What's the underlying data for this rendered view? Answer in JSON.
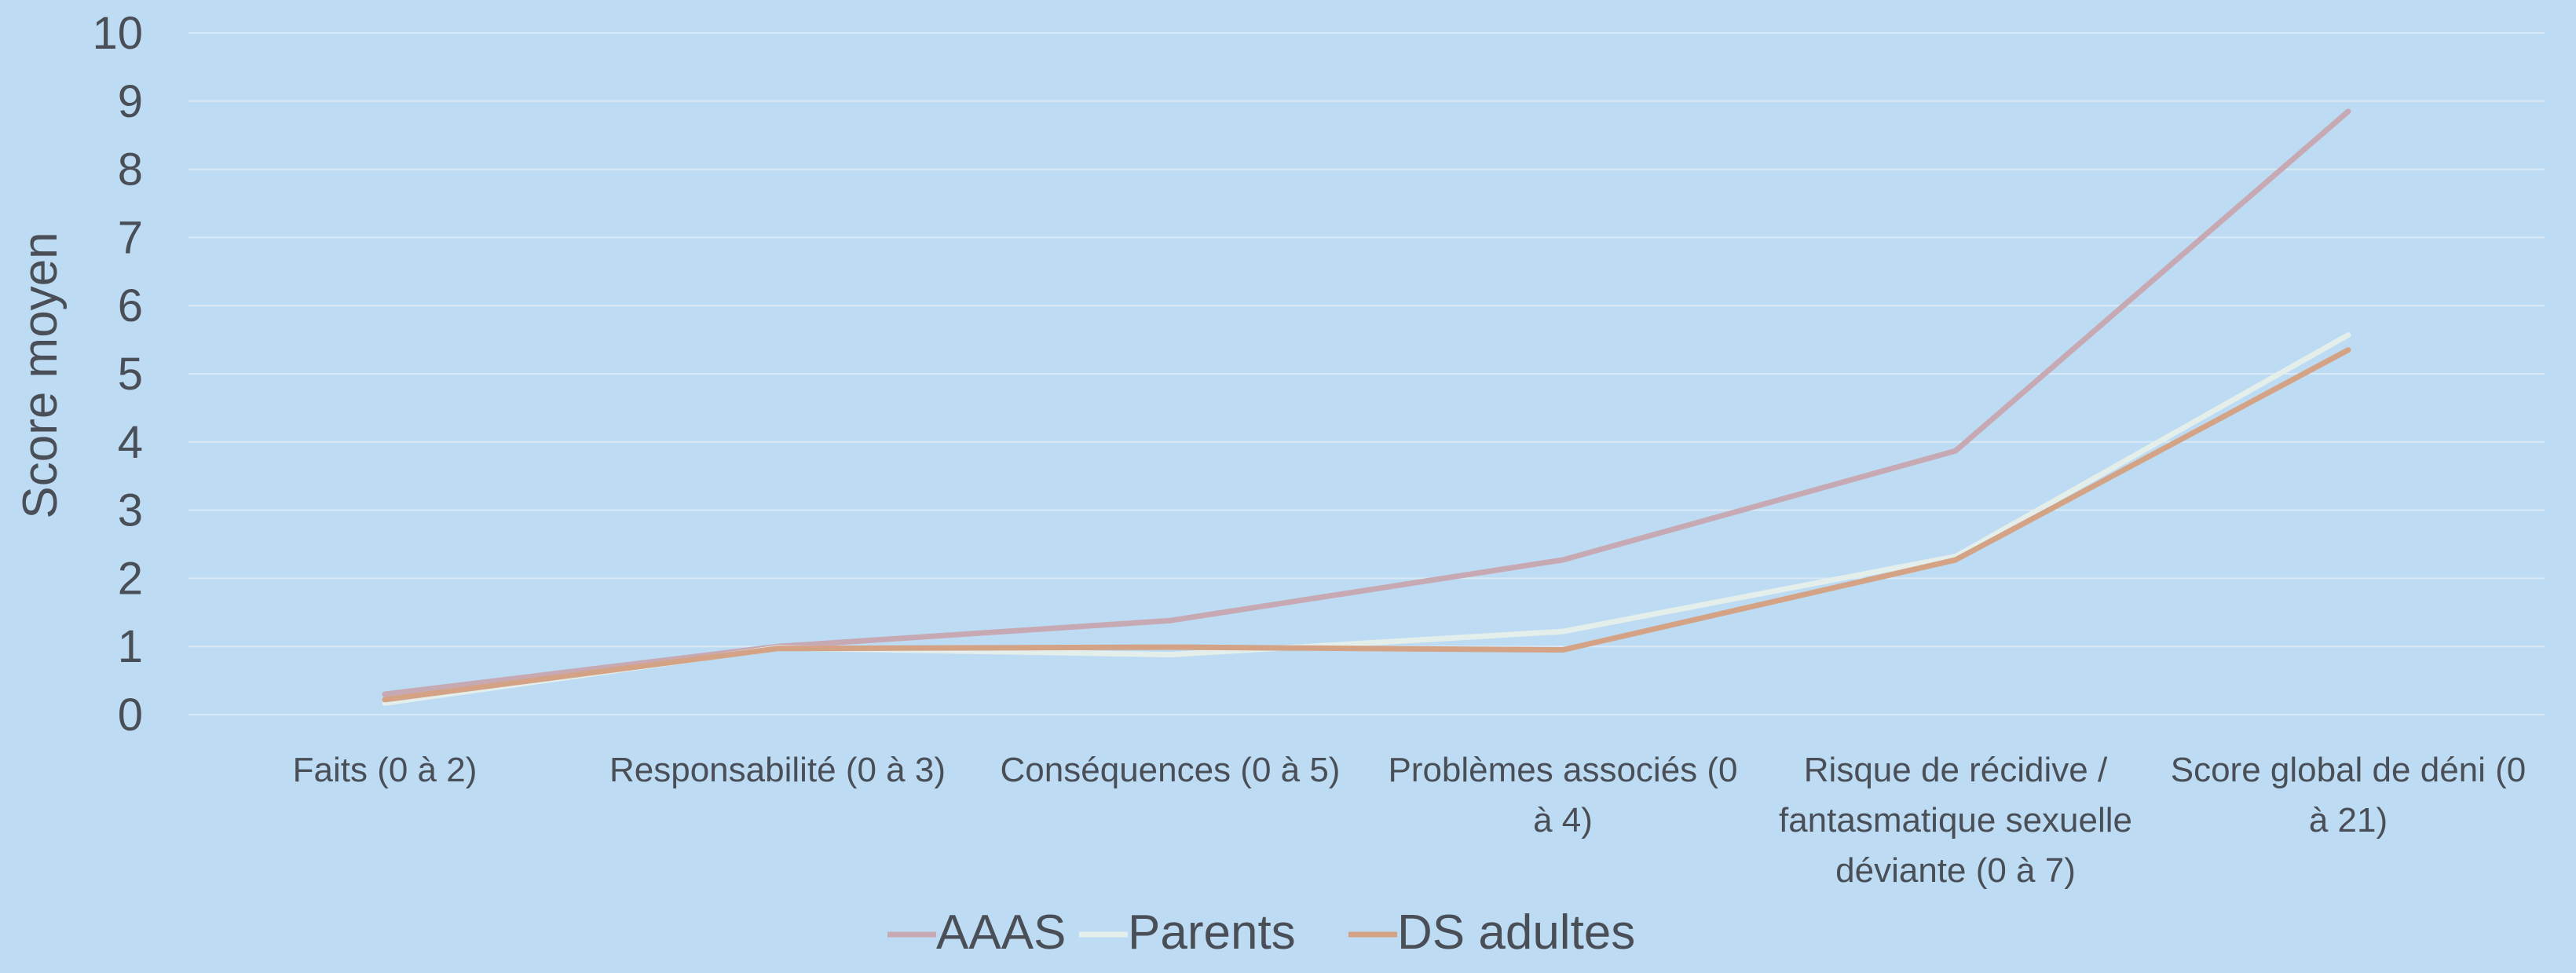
{
  "chart_data": {
    "type": "line",
    "title": "",
    "xlabel": "",
    "ylabel": "Score moyen",
    "ylim": [
      0,
      10
    ],
    "yticks": [
      0,
      1,
      2,
      3,
      4,
      5,
      6,
      7,
      8,
      9,
      10
    ],
    "grid": true,
    "legend_position": "bottom",
    "categories": [
      [
        "Faits (0 à 2)"
      ],
      [
        "Responsabilité (0 à 3)"
      ],
      [
        "Conséquences (0 à 5)"
      ],
      [
        "Problèmes associés (0",
        "à 4)"
      ],
      [
        "Risque de récidive  /",
        "fantasmatique sexuelle",
        "déviante (0 à 7)"
      ],
      [
        "Score global de déni (0",
        "à 21)"
      ]
    ],
    "series": [
      {
        "name": "AAAS",
        "color": "#C7A9B4",
        "values": [
          0.3,
          1.0,
          1.38,
          2.27,
          3.87,
          8.85
        ]
      },
      {
        "name": "Parents",
        "color": "#E4EEEA",
        "values": [
          0.17,
          0.98,
          0.88,
          1.22,
          2.32,
          5.57
        ]
      },
      {
        "name": "DS adultes",
        "color": "#D4A385",
        "values": [
          0.22,
          0.97,
          0.99,
          0.95,
          2.27,
          5.35
        ]
      }
    ]
  }
}
